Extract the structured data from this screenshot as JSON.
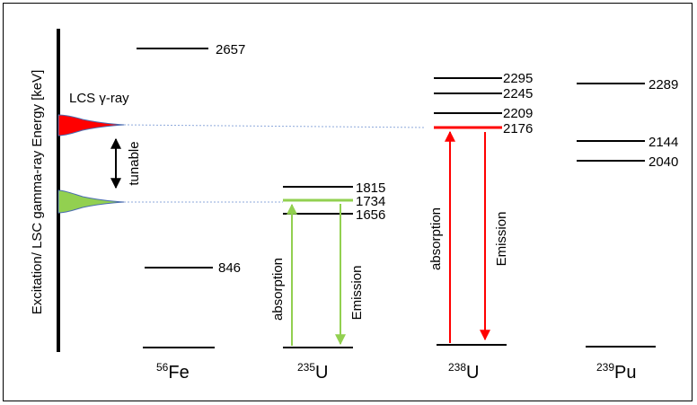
{
  "axis_label": "Excitation/ LSC gamma-ray Energy [keV]",
  "lcs_label": "LCS γ-ray",
  "tunable_label": "tunable",
  "colors": {
    "red": "#ff0000",
    "green": "#92d050",
    "dashed": "#8ea9db",
    "black": "#000000"
  },
  "nuclei": [
    {
      "mass": "56",
      "symbol": "Fe",
      "levels": [
        "2657",
        "846"
      ]
    },
    {
      "mass": "235",
      "symbol": "U",
      "levels": [
        "1815",
        "1734",
        "1656"
      ],
      "arrow_up": "absorption",
      "arrow_down": "Emission"
    },
    {
      "mass": "238",
      "symbol": "U",
      "levels": [
        "2295",
        "2245",
        "2209",
        "2176"
      ],
      "arrow_up": "absorption",
      "arrow_down": "Emission"
    },
    {
      "mass": "239",
      "symbol": "Pu",
      "levels": [
        "2289",
        "2144",
        "2040"
      ]
    }
  ]
}
